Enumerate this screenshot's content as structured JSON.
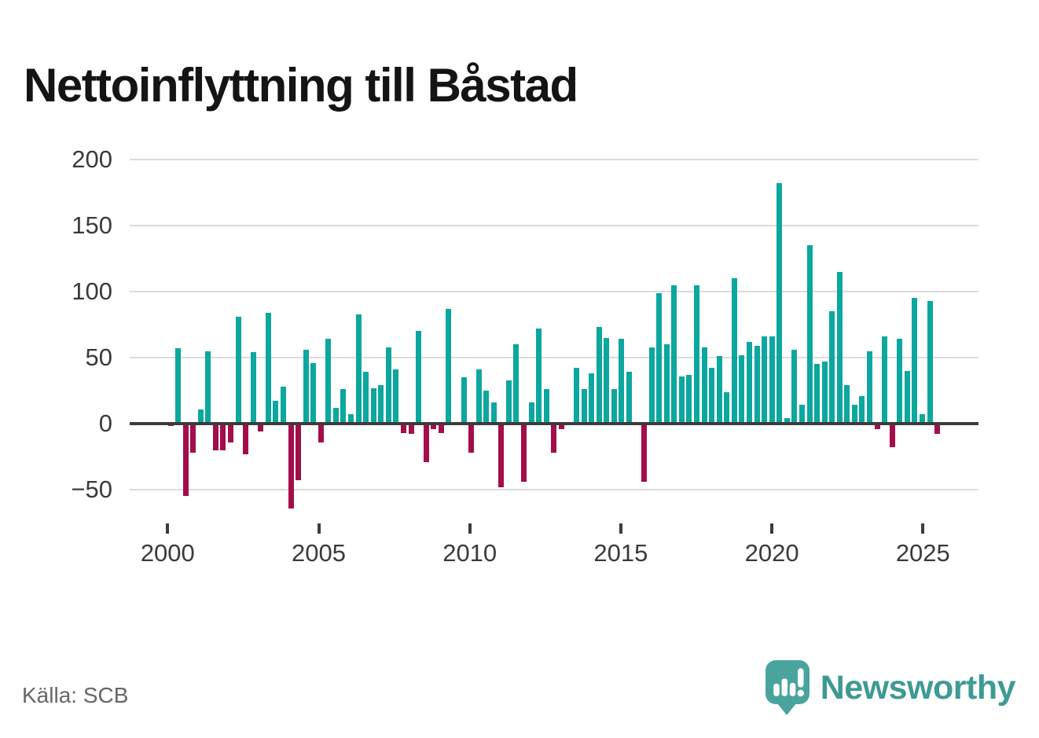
{
  "title": "Nettoinflyttning till Båstad",
  "source": "Källa: SCB",
  "brand": {
    "name": "Newsworthy"
  },
  "colors": {
    "positive": "#0ca79e",
    "negative": "#a30d4b",
    "axis": "#3c3c3c",
    "grid": "#dcdcdc",
    "tick_label": "#3a3a3a",
    "source_text": "#666666",
    "brand_teal": "#3e9a94",
    "logo_bubble": "#4aa49e",
    "background": "#ffffff",
    "title_text": "#141414"
  },
  "chart_data": {
    "type": "bar",
    "title": "Nettoinflyttning till Båstad",
    "xlabel": "",
    "ylabel": "",
    "frequency": "quarterly",
    "x_start": "2000 Q1",
    "x_end": "2025 Q3",
    "x_tick_labels": [
      "2000",
      "2005",
      "2010",
      "2015",
      "2020",
      "2025"
    ],
    "x_tick_years": [
      2000,
      2005,
      2010,
      2015,
      2020,
      2025
    ],
    "y_tick_labels": [
      "200",
      "150",
      "100",
      "50",
      "0",
      "−50"
    ],
    "y_ticks": [
      200,
      150,
      100,
      50,
      0,
      -50
    ],
    "ylim": [
      -70,
      215
    ],
    "grid": "horizontal",
    "legend": "none",
    "values": [
      -2,
      57,
      -55,
      -22,
      11,
      55,
      -20,
      -20,
      -14,
      81,
      -23,
      54,
      -6,
      84,
      17,
      28,
      -64,
      -43,
      56,
      46,
      -14,
      64,
      12,
      26,
      7,
      83,
      39,
      27,
      29,
      58,
      41,
      -7,
      -8,
      70,
      -29,
      -4,
      -7,
      87,
      0,
      35,
      -22,
      41,
      25,
      16,
      -48,
      33,
      60,
      -44,
      16,
      72,
      26,
      -22,
      -4,
      0,
      42,
      26,
      38,
      73,
      65,
      26,
      64,
      39,
      0,
      -44,
      58,
      99,
      60,
      105,
      36,
      37,
      105,
      58,
      42,
      51,
      24,
      110,
      52,
      62,
      59,
      66,
      66,
      182,
      4,
      56,
      14,
      135,
      45,
      47,
      85,
      115,
      29,
      14,
      21,
      55,
      -4,
      66,
      -18,
      64,
      40,
      95,
      7,
      93,
      -8
    ]
  }
}
